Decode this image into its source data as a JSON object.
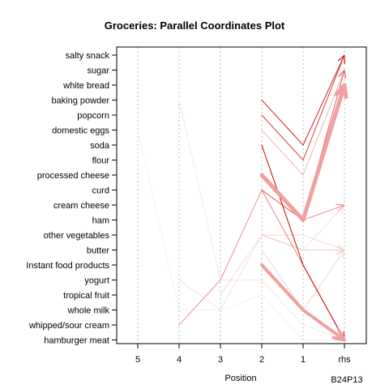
{
  "chart_data": {
    "type": "parallel-coordinates",
    "title": "Groceries: Parallel Coordinates Plot",
    "xlabel": "Position",
    "note": "B24P13",
    "x_categories": [
      "5",
      "4",
      "3",
      "2",
      "1",
      "rhs"
    ],
    "y_categories": [
      "salty snack",
      "sugar",
      "white bread",
      "baking powder",
      "popcorn",
      "domestic eggs",
      "soda",
      "flour",
      "processed cheese",
      "curd",
      "cream cheese ",
      "ham",
      "other vegetables",
      "butter",
      "Instant food products",
      "yogurt",
      "tropical fruit",
      "whole milk",
      "whipped/sour cream",
      "hamburger meat"
    ],
    "grid": true,
    "rules": [
      {
        "path": [
          {
            "x": "2",
            "y": "processed cheese"
          },
          {
            "x": "1",
            "y": "ham"
          },
          {
            "x": "rhs",
            "y": "white bread"
          }
        ],
        "color": "#f0a0a0",
        "width": 5
      },
      {
        "path": [
          {
            "x": "2",
            "y": "Instant food products"
          },
          {
            "x": "1",
            "y": "whole milk"
          },
          {
            "x": "rhs",
            "y": "hamburger meat"
          }
        ],
        "color": "#f0a0a0",
        "width": 4
      },
      {
        "path": [
          {
            "x": "2",
            "y": "soda"
          },
          {
            "x": "1",
            "y": "Instant food products"
          },
          {
            "x": "rhs",
            "y": "hamburger meat"
          }
        ],
        "color": "#cc0000",
        "width": 1
      },
      {
        "path": [
          {
            "x": "2",
            "y": "baking powder"
          },
          {
            "x": "1",
            "y": "soda"
          },
          {
            "x": "rhs",
            "y": "salty snack"
          }
        ],
        "color": "#cc2020",
        "width": 1
      },
      {
        "path": [
          {
            "x": "2",
            "y": "popcorn"
          },
          {
            "x": "1",
            "y": "flour"
          },
          {
            "x": "rhs",
            "y": "salty snack"
          }
        ],
        "color": "#d84040",
        "width": 1
      },
      {
        "path": [
          {
            "x": "2",
            "y": "curd"
          },
          {
            "x": "1",
            "y": "ham"
          },
          {
            "x": "rhs",
            "y": "sugar"
          }
        ],
        "color": "#e06060",
        "width": 1
      },
      {
        "path": [
          {
            "x": "2",
            "y": "curd"
          },
          {
            "x": "1",
            "y": "Instant food products"
          },
          {
            "x": "rhs",
            "y": "hamburger meat"
          }
        ],
        "color": "#e88080",
        "width": 1
      },
      {
        "path": [
          {
            "x": "4",
            "y": "whipped/sour cream"
          },
          {
            "x": "3",
            "y": "yogurt"
          },
          {
            "x": "2",
            "y": "curd"
          },
          {
            "x": "1",
            "y": "ham"
          },
          {
            "x": "rhs",
            "y": "cream cheese "
          }
        ],
        "color": "#ec9090",
        "width": 1
      },
      {
        "path": [
          {
            "x": "2",
            "y": "domestic eggs"
          },
          {
            "x": "1",
            "y": "processed cheese"
          },
          {
            "x": "rhs",
            "y": "sugar"
          }
        ],
        "color": "#f2b8b8",
        "width": 1
      },
      {
        "path": [
          {
            "x": "2",
            "y": "other vegetables"
          },
          {
            "x": "1",
            "y": "butter"
          },
          {
            "x": "rhs",
            "y": "butter"
          }
        ],
        "color": "#f4c8c8",
        "width": 1
      },
      {
        "path": [
          {
            "x": "2",
            "y": "butter"
          },
          {
            "x": "1",
            "y": "whole milk"
          },
          {
            "x": "rhs",
            "y": "butter"
          }
        ],
        "color": "#f4d0d0",
        "width": 1
      },
      {
        "path": [
          {
            "x": "3",
            "y": "tropical fruit"
          },
          {
            "x": "2",
            "y": "other vegetables"
          },
          {
            "x": "1",
            "y": "other vegetables"
          },
          {
            "x": "rhs",
            "y": "butter"
          }
        ],
        "color": "#f6dada",
        "width": 1
      },
      {
        "path": [
          {
            "x": "4",
            "y": "yogurt"
          },
          {
            "x": "3",
            "y": "whole milk"
          },
          {
            "x": "2",
            "y": "other vegetables"
          },
          {
            "x": "1",
            "y": "butter"
          },
          {
            "x": "rhs",
            "y": "cream cheese "
          }
        ],
        "color": "#f8e0e0",
        "width": 1
      },
      {
        "path": [
          {
            "x": "4",
            "y": "baking powder"
          },
          {
            "x": "3",
            "y": "yogurt"
          },
          {
            "x": "2",
            "y": "yogurt"
          },
          {
            "x": "1",
            "y": "whipped/sour cream"
          },
          {
            "x": "rhs",
            "y": "hamburger meat"
          }
        ],
        "color": "#f9e6e6",
        "width": 1
      },
      {
        "path": [
          {
            "x": "5",
            "y": "domestic eggs"
          },
          {
            "x": "4",
            "y": "whole milk"
          },
          {
            "x": "3",
            "y": "whole milk"
          },
          {
            "x": "2",
            "y": "tropical fruit"
          },
          {
            "x": "1",
            "y": "hamburger meat"
          },
          {
            "x": "rhs",
            "y": "hamburger meat"
          }
        ],
        "color": "#fbeeee",
        "width": 1
      }
    ]
  }
}
